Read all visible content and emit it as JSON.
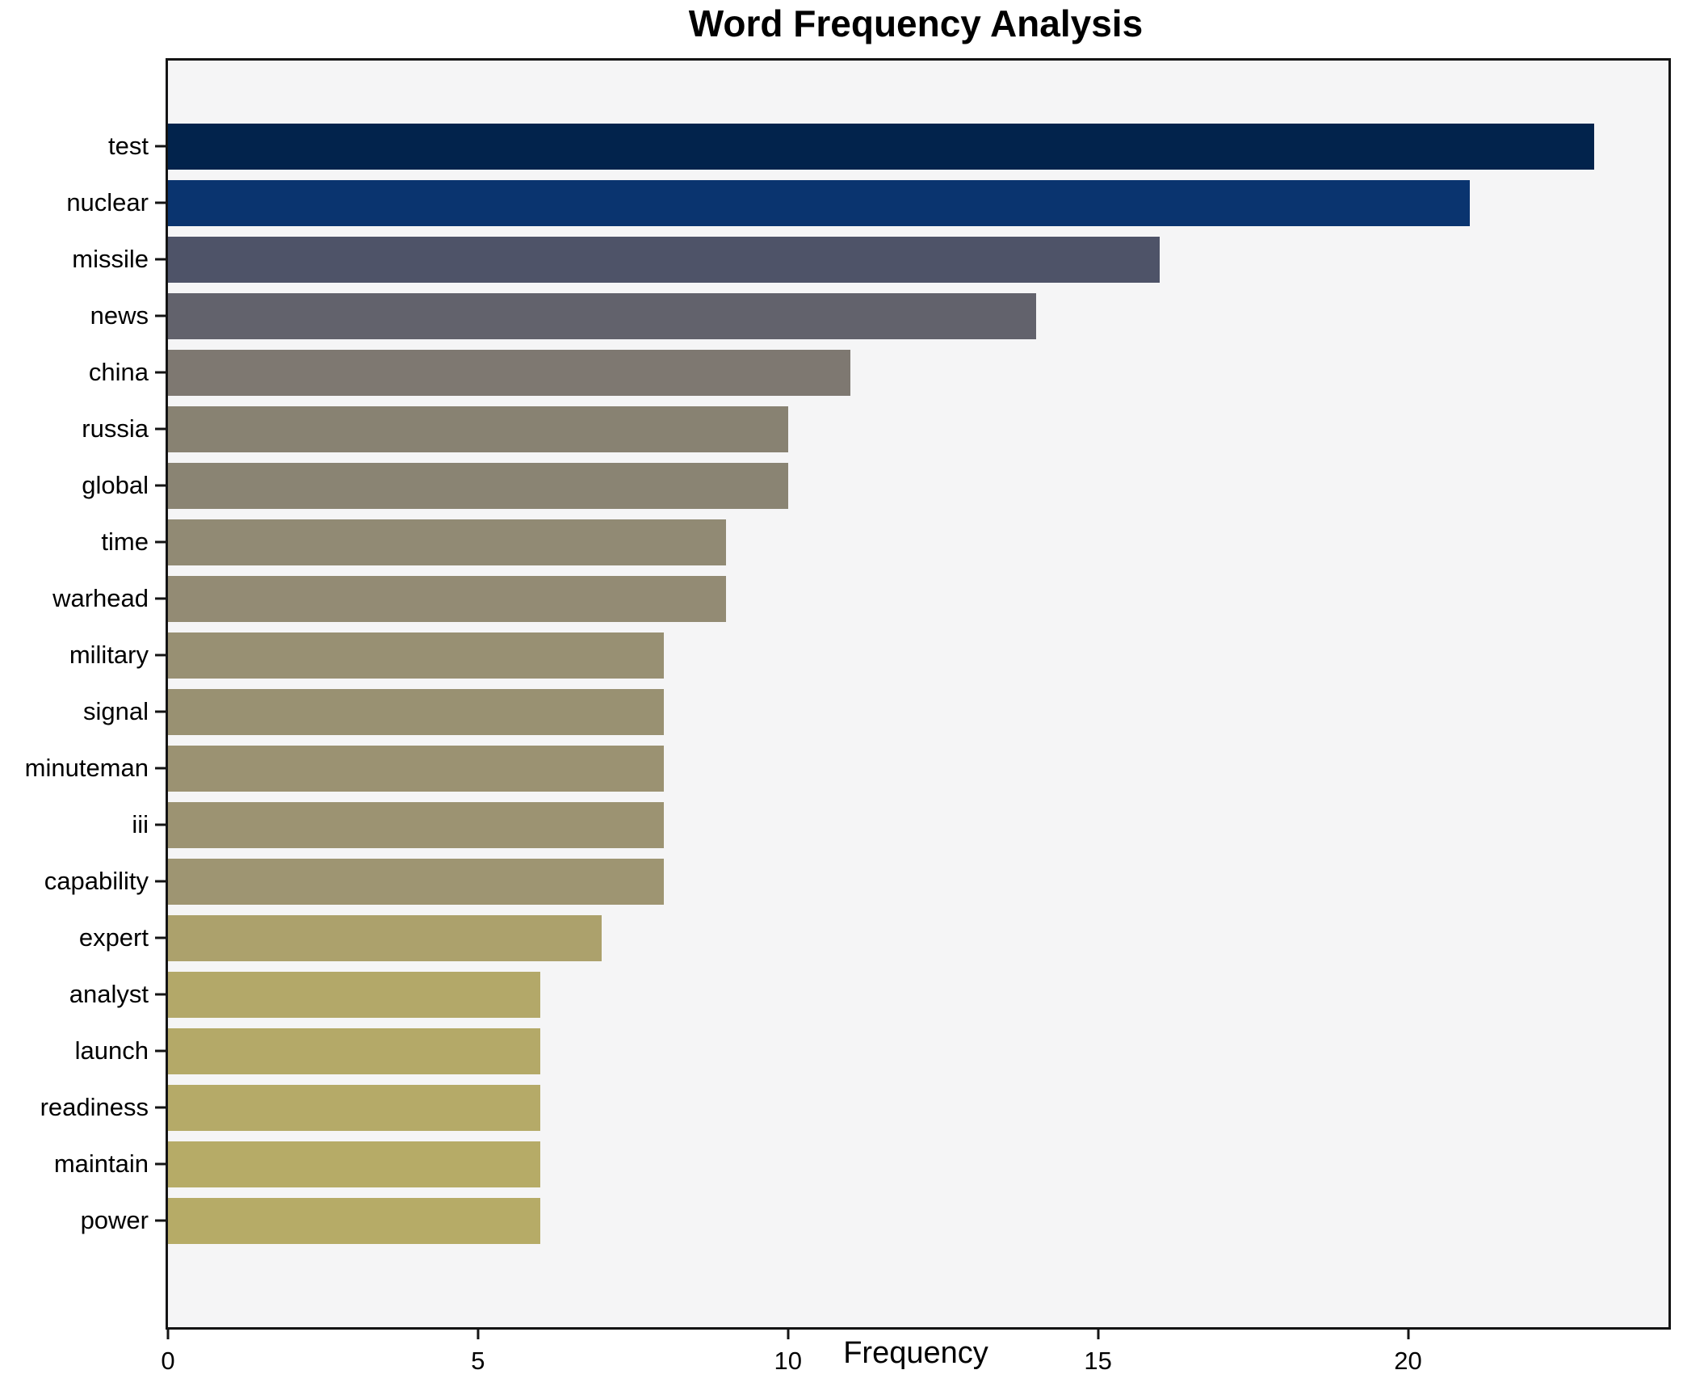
{
  "title": "Word Frequency Analysis",
  "chart_data": {
    "type": "bar",
    "orientation": "horizontal",
    "title": "Word Frequency Analysis",
    "xlabel": "Frequency",
    "ylabel": "",
    "categories": [
      "test",
      "nuclear",
      "missile",
      "news",
      "china",
      "russia",
      "global",
      "time",
      "warhead",
      "military",
      "signal",
      "minuteman",
      "iii",
      "capability",
      "expert",
      "analyst",
      "launch",
      "readiness",
      "maintain",
      "power"
    ],
    "values": [
      23,
      21,
      16,
      14,
      11,
      10,
      10,
      9,
      9,
      8,
      8,
      8,
      8,
      8,
      7,
      6,
      6,
      6,
      6,
      6
    ],
    "bar_colors": [
      "#02234c",
      "#0a346f",
      "#4e5368",
      "#62626c",
      "#7e7871",
      "#888272",
      "#8a8473",
      "#918a74",
      "#938b74",
      "#989073",
      "#999172",
      "#9b9272",
      "#9c9372",
      "#9e9572",
      "#aca16c",
      "#b3a869",
      "#b4a968",
      "#b5aa68",
      "#b6ab67",
      "#b6ab67"
    ],
    "xlim": [
      0,
      24.2
    ],
    "xticks": [
      0,
      5,
      10,
      15,
      20
    ],
    "grid": false,
    "legend_position": "none",
    "plot_background": "#f5f5f6",
    "figure_background": "#ffffff",
    "spine_color": "#141414"
  }
}
